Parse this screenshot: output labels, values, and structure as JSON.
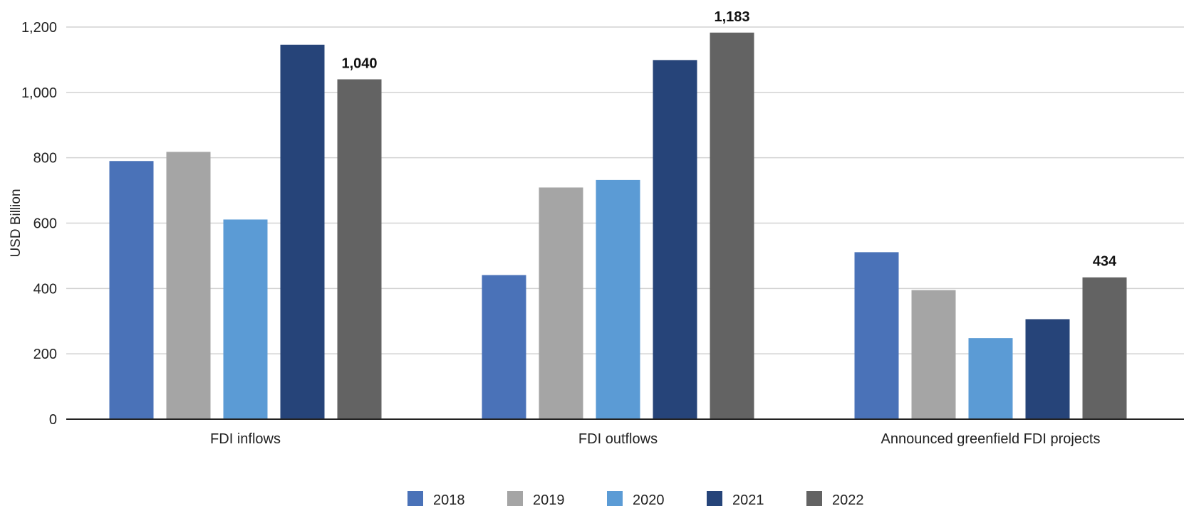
{
  "chart_data": {
    "type": "bar",
    "title": "",
    "xlabel": "",
    "ylabel": "USD Billion",
    "ylim": [
      0,
      1200
    ],
    "yticks": [
      0,
      200,
      400,
      600,
      800,
      1000,
      1200
    ],
    "ytick_labels": [
      "0",
      "200",
      "400",
      "600",
      "800",
      "1,000",
      "1,200"
    ],
    "grid": true,
    "legend_position": "bottom",
    "categories": [
      "FDI inflows",
      "FDI outflows",
      "Announced greenfield FDI projects"
    ],
    "series": [
      {
        "name": "2018",
        "color": "#4a72b8",
        "values": [
          790,
          441,
          511
        ]
      },
      {
        "name": "2019",
        "color": "#a5a5a5",
        "values": [
          818,
          709,
          395
        ]
      },
      {
        "name": "2020",
        "color": "#5b9bd5",
        "values": [
          611,
          732,
          248
        ]
      },
      {
        "name": "2021",
        "color": "#264479",
        "values": [
          1146,
          1099,
          306
        ]
      },
      {
        "name": "2022",
        "color": "#636363",
        "values": [
          1040,
          1183,
          434
        ]
      }
    ],
    "data_labels": [
      {
        "series": "2022",
        "category": "FDI inflows",
        "value": 1040,
        "text": "1,040"
      },
      {
        "series": "2022",
        "category": "FDI outflows",
        "value": 1183,
        "text": "1,183"
      },
      {
        "series": "2022",
        "category": "Announced greenfield FDI projects",
        "value": 434,
        "text": "434"
      }
    ]
  }
}
